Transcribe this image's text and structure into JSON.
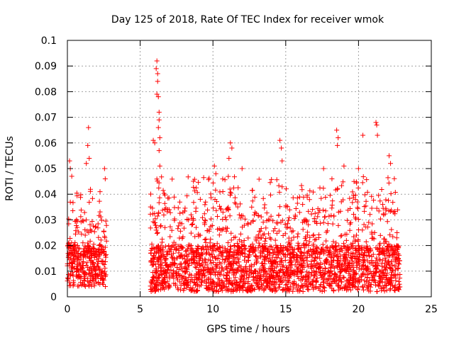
{
  "chart_data": {
    "type": "scatter",
    "title": "Day 125 of 2018, Rate Of TEC Index for receiver wmok",
    "xlabel": "GPS time / hours",
    "ylabel": "ROTI / TECUs",
    "xlim": [
      0,
      25
    ],
    "ylim": [
      0,
      0.1
    ],
    "x_ticks": [
      "0",
      "5",
      "10",
      "15",
      "20",
      "25"
    ],
    "y_ticks": [
      "0",
      "0.01",
      "0.02",
      "0.03",
      "0.04",
      "0.05",
      "0.06",
      "0.07",
      "0.08",
      "0.09",
      "0.1"
    ],
    "x_tick_values": [
      0,
      5,
      10,
      15,
      20,
      25
    ],
    "y_tick_values": [
      0,
      0.01,
      0.02,
      0.03,
      0.04,
      0.05,
      0.06,
      0.07,
      0.08,
      0.09,
      0.1
    ],
    "grid": true,
    "marker": "plus",
    "color": "#ff0000",
    "data_segments": [
      {
        "x_start": 0.0,
        "x_end": 2.7,
        "typical_low": 0.004,
        "typical_high": 0.03
      },
      {
        "x_start": 5.7,
        "x_end": 22.9,
        "typical_low": 0.002,
        "typical_high": 0.035
      }
    ],
    "notable_points": [
      {
        "x": 0.15,
        "y": 0.053
      },
      {
        "x": 0.2,
        "y": 0.05
      },
      {
        "x": 0.3,
        "y": 0.047
      },
      {
        "x": 1.3,
        "y": 0.052
      },
      {
        "x": 1.4,
        "y": 0.059
      },
      {
        "x": 1.45,
        "y": 0.066
      },
      {
        "x": 1.5,
        "y": 0.054
      },
      {
        "x": 2.55,
        "y": 0.05
      },
      {
        "x": 2.6,
        "y": 0.046
      },
      {
        "x": 5.9,
        "y": 0.061
      },
      {
        "x": 6.0,
        "y": 0.06
      },
      {
        "x": 6.15,
        "y": 0.092
      },
      {
        "x": 6.1,
        "y": 0.089
      },
      {
        "x": 6.2,
        "y": 0.087
      },
      {
        "x": 6.2,
        "y": 0.084
      },
      {
        "x": 6.15,
        "y": 0.079
      },
      {
        "x": 6.25,
        "y": 0.078
      },
      {
        "x": 6.3,
        "y": 0.072
      },
      {
        "x": 6.3,
        "y": 0.069
      },
      {
        "x": 6.25,
        "y": 0.066
      },
      {
        "x": 6.35,
        "y": 0.062
      },
      {
        "x": 6.3,
        "y": 0.057
      },
      {
        "x": 6.35,
        "y": 0.051
      },
      {
        "x": 10.1,
        "y": 0.051
      },
      {
        "x": 10.2,
        "y": 0.048
      },
      {
        "x": 11.2,
        "y": 0.06
      },
      {
        "x": 11.3,
        "y": 0.058
      },
      {
        "x": 11.1,
        "y": 0.054
      },
      {
        "x": 14.6,
        "y": 0.061
      },
      {
        "x": 14.7,
        "y": 0.058
      },
      {
        "x": 14.75,
        "y": 0.053
      },
      {
        "x": 18.5,
        "y": 0.065
      },
      {
        "x": 18.6,
        "y": 0.062
      },
      {
        "x": 18.55,
        "y": 0.059
      },
      {
        "x": 17.6,
        "y": 0.05
      },
      {
        "x": 19.0,
        "y": 0.051
      },
      {
        "x": 20.3,
        "y": 0.063
      },
      {
        "x": 21.2,
        "y": 0.068
      },
      {
        "x": 21.25,
        "y": 0.067
      },
      {
        "x": 21.3,
        "y": 0.063
      },
      {
        "x": 22.1,
        "y": 0.055
      },
      {
        "x": 22.2,
        "y": 0.052
      },
      {
        "x": 20.0,
        "y": 0.05
      },
      {
        "x": 12.0,
        "y": 0.05
      }
    ]
  }
}
